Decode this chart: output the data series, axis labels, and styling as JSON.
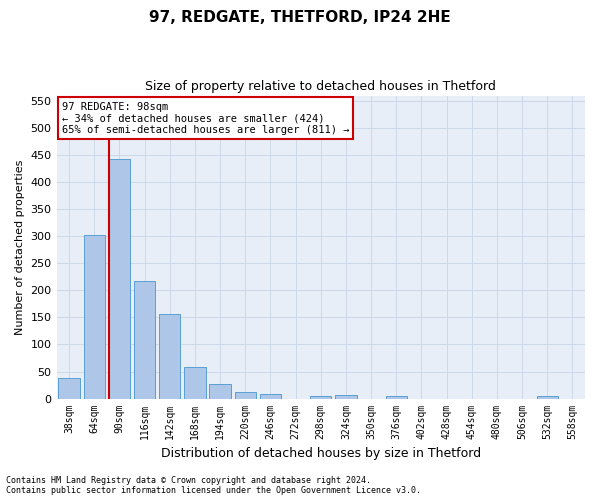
{
  "title1": "97, REDGATE, THETFORD, IP24 2HE",
  "title2": "Size of property relative to detached houses in Thetford",
  "xlabel": "Distribution of detached houses by size in Thetford",
  "ylabel": "Number of detached properties",
  "footnote1": "Contains HM Land Registry data © Crown copyright and database right 2024.",
  "footnote2": "Contains public sector information licensed under the Open Government Licence v3.0.",
  "bar_labels": [
    "38sqm",
    "64sqm",
    "90sqm",
    "116sqm",
    "142sqm",
    "168sqm",
    "194sqm",
    "220sqm",
    "246sqm",
    "272sqm",
    "298sqm",
    "324sqm",
    "350sqm",
    "376sqm",
    "402sqm",
    "428sqm",
    "454sqm",
    "480sqm",
    "506sqm",
    "532sqm",
    "558sqm"
  ],
  "bar_values": [
    38,
    303,
    443,
    217,
    157,
    58,
    27,
    13,
    9,
    0,
    5,
    6,
    0,
    4,
    0,
    0,
    0,
    0,
    0,
    4,
    0
  ],
  "bar_color": "#aec6e8",
  "bar_edge_color": "#5a9fd4",
  "grid_color": "#cdd8e8",
  "background_color": "#e8eef8",
  "vline_color": "#cc0000",
  "vline_x_index": 2,
  "annotation_text": "97 REDGATE: 98sqm\n← 34% of detached houses are smaller (424)\n65% of semi-detached houses are larger (811) →",
  "annotation_box_color": "#cc0000",
  "ylim": [
    0,
    560
  ],
  "yticks": [
    0,
    50,
    100,
    150,
    200,
    250,
    300,
    350,
    400,
    450,
    500,
    550
  ],
  "title1_fontsize": 11,
  "title2_fontsize": 9,
  "bar_width": 0.85
}
